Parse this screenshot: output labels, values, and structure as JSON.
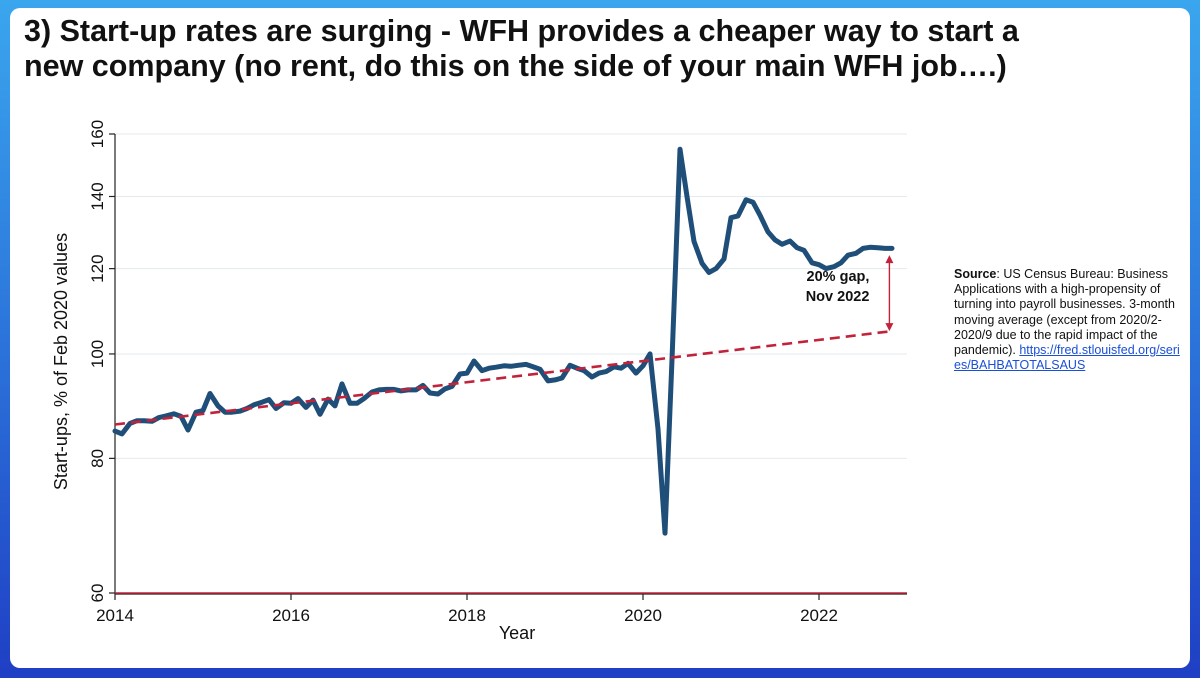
{
  "slide": {
    "title_line1": "3) Start-up rates are surging - WFH provides a cheaper way to start a",
    "title_line2": "new company (no rent, do this on the side of your main WFH job….)"
  },
  "chart_data": {
    "type": "line",
    "xlabel": "Year",
    "ylabel": "Start-ups, % of Feb 2020 values",
    "x_ticks": [
      2014,
      2016,
      2018,
      2020,
      2022
    ],
    "y_ticks": [
      60,
      80,
      100,
      120,
      140,
      160
    ],
    "xlim": [
      2014,
      2023
    ],
    "ylim": [
      60,
      160
    ],
    "y_scale": "log",
    "grid": true,
    "series": [
      {
        "style": "solid",
        "color": "#1f4e79",
        "x": [
          2014.0,
          2014.08,
          2014.17,
          2014.25,
          2014.33,
          2014.42,
          2014.5,
          2014.58,
          2014.67,
          2014.75,
          2014.83,
          2014.92,
          2015.0,
          2015.08,
          2015.17,
          2015.25,
          2015.33,
          2015.42,
          2015.5,
          2015.58,
          2015.67,
          2015.75,
          2015.83,
          2015.92,
          2016.0,
          2016.08,
          2016.17,
          2016.25,
          2016.33,
          2016.42,
          2016.5,
          2016.58,
          2016.67,
          2016.75,
          2016.83,
          2016.92,
          2017.0,
          2017.08,
          2017.17,
          2017.25,
          2017.33,
          2017.42,
          2017.5,
          2017.58,
          2017.67,
          2017.75,
          2017.83,
          2017.92,
          2018.0,
          2018.08,
          2018.17,
          2018.25,
          2018.33,
          2018.42,
          2018.5,
          2018.58,
          2018.67,
          2018.75,
          2018.83,
          2018.92,
          2019.0,
          2019.08,
          2019.17,
          2019.25,
          2019.33,
          2019.42,
          2019.5,
          2019.58,
          2019.67,
          2019.75,
          2019.83,
          2019.92,
          2020.0,
          2020.08,
          2020.17,
          2020.25,
          2020.33,
          2020.42,
          2020.5,
          2020.58,
          2020.67,
          2020.75,
          2020.83,
          2020.92,
          2021.0,
          2021.08,
          2021.17,
          2021.25,
          2021.33,
          2021.42,
          2021.5,
          2021.58,
          2021.67,
          2021.75,
          2021.83,
          2021.92,
          2022.0,
          2022.08,
          2022.17,
          2022.25,
          2022.33,
          2022.42,
          2022.5,
          2022.58,
          2022.67,
          2022.75,
          2022.83
        ],
        "values": [
          84.8,
          84.3,
          86.2,
          86.7,
          86.7,
          86.6,
          87.3,
          87.6,
          88.0,
          87.5,
          85.0,
          88.3,
          88.6,
          91.9,
          89.5,
          88.3,
          88.3,
          88.5,
          89.0,
          89.7,
          90.2,
          90.7,
          89.0,
          90.1,
          90.0,
          90.9,
          89.2,
          90.6,
          87.9,
          90.8,
          89.5,
          93.8,
          90.0,
          90.0,
          90.9,
          92.2,
          92.6,
          92.7,
          92.7,
          92.4,
          92.6,
          92.6,
          93.5,
          92.0,
          91.8,
          92.8,
          93.3,
          95.8,
          96.0,
          98.5,
          96.5,
          97.0,
          97.2,
          97.5,
          97.4,
          97.6,
          97.8,
          97.3,
          96.8,
          94.4,
          94.6,
          95.0,
          97.6,
          97.0,
          96.5,
          95.2,
          96.0,
          96.3,
          97.3,
          97.0,
          98.0,
          96.0,
          97.5,
          100.0,
          85.2,
          68.2,
          98.8,
          154.9,
          140.0,
          127.2,
          121.4,
          119.0,
          120.0,
          122.5,
          133.8,
          134.3,
          139.0,
          138.3,
          134.5,
          129.8,
          127.6,
          126.4,
          127.3,
          125.5,
          124.8,
          121.5,
          121.0,
          120.0,
          120.5,
          121.5,
          123.5,
          124.0,
          125.3,
          125.6,
          125.5,
          125.3,
          125.3
        ]
      },
      {
        "style": "dashed",
        "color": "#c0233a",
        "x": [
          2014.0,
          2022.83
        ],
        "values": [
          86.0,
          105.0
        ]
      }
    ],
    "reference_line": {
      "y": 60,
      "color": "#c0233a"
    },
    "annotation": {
      "line1": "20% gap,",
      "line2": "Nov 2022",
      "arrow_x": 2022.8,
      "arrow_from": 105.0,
      "arrow_to": 123.5,
      "color": "#c0233a"
    }
  },
  "source": {
    "label": "Source",
    "text": ": US Census Bureau: Business Applications with a high-propensity of turning into payroll businesses. 3-month moving average (except from 2020/2-2020/9 due to the rapid impact of the pandemic).",
    "link": "https://fred.stlouisfed.org/series/BAHBATOTALSAUS"
  }
}
